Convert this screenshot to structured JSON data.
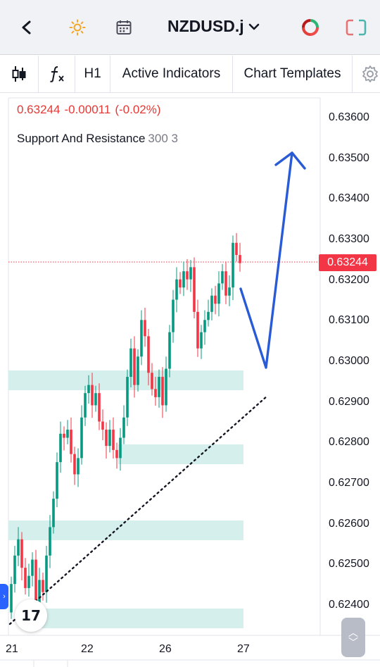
{
  "header": {
    "symbol": "NZDUSD.j",
    "icons": [
      "back-icon",
      "theme-sun-icon",
      "calendar-icon",
      "indicator-ring-icon",
      "layout-icon"
    ]
  },
  "toolbar": {
    "timeframe": "H1",
    "active_indicators": "Active Indicators",
    "chart_templates": "Chart Templates"
  },
  "chart": {
    "price_change_last": "0.63244",
    "price_change_abs": "-0.00011",
    "price_change_pct": "(-0.02%)",
    "indicator_name": "Support And Resistance",
    "indicator_params": "300 3",
    "last_price_tag": "0.63244",
    "colors": {
      "up": "#089981",
      "down": "#f23645",
      "zone": "#d5efec",
      "arrow": "#2a5bd7"
    }
  },
  "axis": {
    "price_labels": [
      "0.63600",
      "0.63500",
      "0.63400",
      "0.63300",
      "0.63200",
      "0.63100",
      "0.63000",
      "0.62900",
      "0.62800",
      "0.62700",
      "0.62600",
      "0.62500",
      "0.62400"
    ],
    "date_labels": [
      "21",
      "22",
      "26",
      "27"
    ]
  },
  "logo_text": "17"
}
